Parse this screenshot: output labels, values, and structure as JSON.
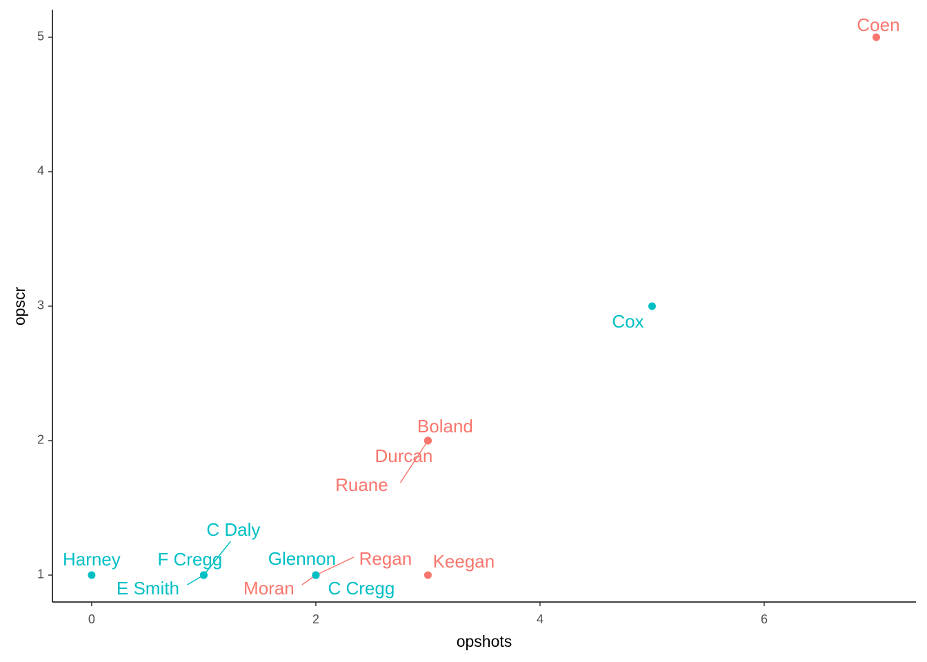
{
  "chart_data": {
    "type": "scatter",
    "x_label": "opshots",
    "y_label": "opscr",
    "series": [
      {
        "color": "#F8766D",
        "labels": [
          "Coen",
          "Boland",
          "Durcan",
          "Ruane",
          "Keegan",
          "Regan",
          "Moran"
        ],
        "x": [
          7,
          3,
          3,
          3,
          3,
          2,
          2
        ],
        "values": [
          5,
          2,
          2,
          2,
          1,
          1,
          1
        ]
      },
      {
        "color": "#00BFC4",
        "labels": [
          "Cox",
          "Harney",
          "F Cregg",
          "C Daly",
          "E Smith",
          "Glennon",
          "C Cregg"
        ],
        "x": [
          5,
          0,
          1,
          1,
          1,
          2,
          2
        ],
        "values": [
          3,
          1,
          1,
          1,
          1,
          1,
          1
        ]
      }
    ],
    "xlim": [
      -0.35,
      7.354
    ],
    "ylim": [
      0.8,
      5.205
    ],
    "xticks": [
      0,
      2,
      4,
      6
    ],
    "yticks": [
      1,
      2,
      3,
      4,
      5
    ],
    "grid": false
  }
}
